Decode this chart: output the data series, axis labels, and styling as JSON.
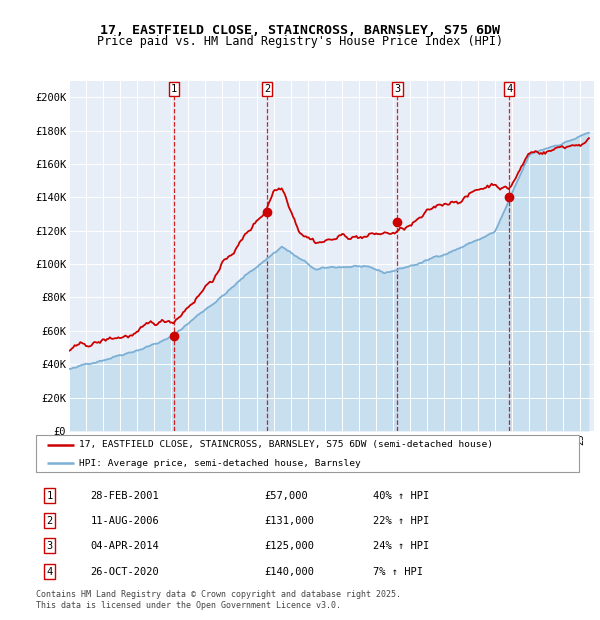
{
  "title_line1": "17, EASTFIELD CLOSE, STAINCROSS, BARNSLEY, S75 6DW",
  "title_line2": "Price paid vs. HM Land Registry's House Price Index (HPI)",
  "ylabel_ticks": [
    "£0",
    "£20K",
    "£40K",
    "£60K",
    "£80K",
    "£100K",
    "£120K",
    "£140K",
    "£160K",
    "£180K",
    "£200K"
  ],
  "ytick_values": [
    0,
    20000,
    40000,
    60000,
    80000,
    100000,
    120000,
    140000,
    160000,
    180000,
    200000
  ],
  "ylim": [
    0,
    210000
  ],
  "xlim_start": 1995.0,
  "xlim_end": 2025.8,
  "red_color": "#cc0000",
  "blue_color": "#7bafd4",
  "blue_fill": "#c8dff0",
  "background_color": "#e8eef8",
  "sale_dates": [
    2001.16,
    2006.61,
    2014.26,
    2020.82
  ],
  "sale_prices": [
    57000,
    131000,
    125000,
    140000
  ],
  "sale_labels": [
    "1",
    "2",
    "3",
    "4"
  ],
  "legend_line1": "17, EASTFIELD CLOSE, STAINCROSS, BARNSLEY, S75 6DW (semi-detached house)",
  "legend_line2": "HPI: Average price, semi-detached house, Barnsley",
  "table_data": [
    [
      "1",
      "28-FEB-2001",
      "£57,000",
      "40% ↑ HPI"
    ],
    [
      "2",
      "11-AUG-2006",
      "£131,000",
      "22% ↑ HPI"
    ],
    [
      "3",
      "04-APR-2014",
      "£125,000",
      "24% ↑ HPI"
    ],
    [
      "4",
      "26-OCT-2020",
      "£140,000",
      "7% ↑ HPI"
    ]
  ],
  "footnote": "Contains HM Land Registry data © Crown copyright and database right 2025.\nThis data is licensed under the Open Government Licence v3.0."
}
